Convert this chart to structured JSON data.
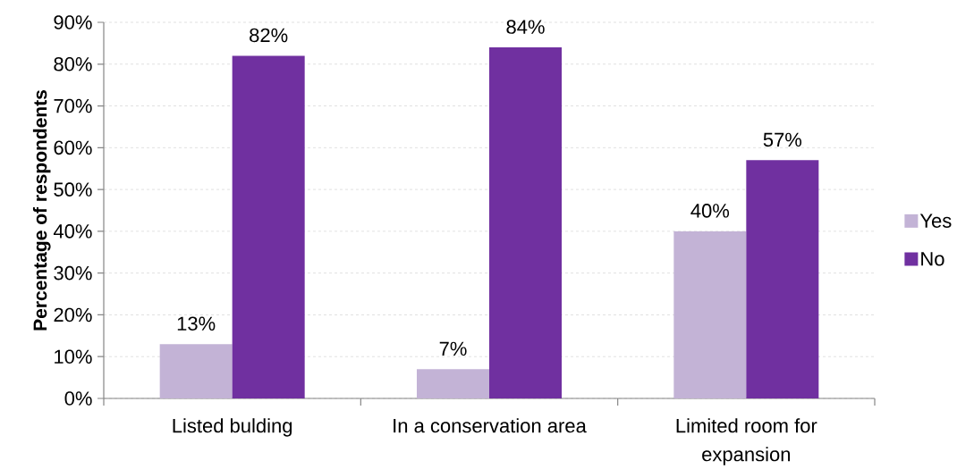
{
  "chart_data": {
    "type": "bar",
    "ylabel": "Percentage of respondents",
    "categories": [
      "Listed bulding",
      "In a conservation area",
      "Limited room for expansion"
    ],
    "series": [
      {
        "name": "Yes",
        "color": "#c3b3d6",
        "values": [
          13,
          7,
          40
        ],
        "value_labels": [
          "13%",
          "7%",
          "40%"
        ]
      },
      {
        "name": "No",
        "color": "#7030a0",
        "values": [
          82,
          84,
          57
        ],
        "value_labels": [
          "82%",
          "84%",
          "57%"
        ]
      }
    ],
    "ylim": [
      0,
      90
    ],
    "yticks": [
      {
        "value": 0,
        "label": "0%"
      },
      {
        "value": 10,
        "label": "10%"
      },
      {
        "value": 20,
        "label": "20%"
      },
      {
        "value": 30,
        "label": "30%"
      },
      {
        "value": 40,
        "label": "40%"
      },
      {
        "value": 50,
        "label": "50%"
      },
      {
        "value": 60,
        "label": "60%"
      },
      {
        "value": 70,
        "label": "70%"
      },
      {
        "value": 80,
        "label": "80%"
      },
      {
        "value": 90,
        "label": "90%"
      }
    ],
    "grid": "y",
    "legend": "right"
  }
}
